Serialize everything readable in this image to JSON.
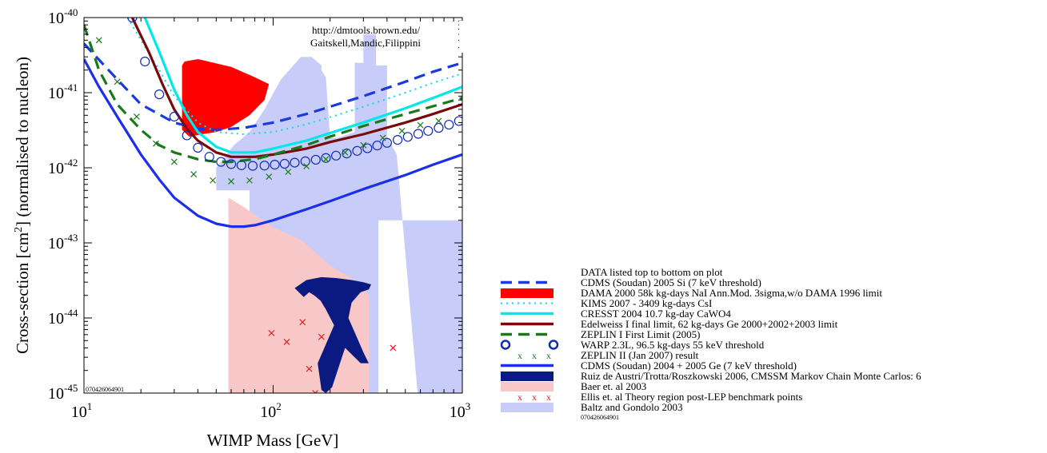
{
  "chart_data": {
    "type": "line",
    "xscale": "log",
    "yscale": "log",
    "xlim": [
      10,
      1000
    ],
    "ylim": [
      1e-45,
      1e-40
    ],
    "xlabel": "WIMP Mass [GeV]",
    "ylabel_pre": "Cross-section [cm",
    "ylabel_sup": "2",
    "ylabel_post": "] (normalised to nucleon)",
    "xticks": [
      {
        "base": "10",
        "exp": "1",
        "value": 10
      },
      {
        "base": "10",
        "exp": "2",
        "value": 100
      },
      {
        "base": "10",
        "exp": "3",
        "value": 1000
      }
    ],
    "yticks": [
      {
        "base": "10",
        "exp": "-40",
        "value": 1e-40
      },
      {
        "base": "10",
        "exp": "-41",
        "value": 1e-41
      },
      {
        "base": "10",
        "exp": "-42",
        "value": 1e-42
      },
      {
        "base": "10",
        "exp": "-43",
        "value": 1e-43
      },
      {
        "base": "10",
        "exp": "-44",
        "value": 1e-44
      },
      {
        "base": "10",
        "exp": "-45",
        "value": 1e-45
      }
    ],
    "annotations": {
      "url": "http://dmtools.brown.edu/",
      "authors": "Gaitskell,Mandic,Filippini",
      "plot_code": "070426064901"
    },
    "series": [
      {
        "name": "Baltz and Gondolo 2003",
        "kind": "region",
        "color": "#c8ccf8",
        "x": [
          50,
          50,
          75,
          75,
          360,
          360,
          1000,
          1000,
          800,
          580,
          450,
          400,
          400,
          350,
          350,
          300,
          300,
          270,
          270,
          220,
          200,
          190,
          190,
          180,
          180,
          160,
          140,
          110,
          90,
          75,
          62,
          50
        ],
        "y": [
          1e-45,
          5e-43,
          5e-43,
          1e-45,
          1e-45,
          2e-43,
          2e-43,
          1e-45,
          1e-45,
          1e-45,
          1.5e-42,
          2.6e-42,
          2.3e-41,
          2.3e-41,
          6e-41,
          6e-41,
          2.5e-41,
          2.5e-41,
          3e-42,
          2.5e-42,
          2.5e-42,
          1.6e-41,
          1.6e-41,
          2e-41,
          2.3e-41,
          3e-41,
          3e-41,
          1.5e-41,
          6e-42,
          3e-42,
          2e-42,
          1e-42
        ]
      },
      {
        "name": "Baer et. al 2003",
        "kind": "region",
        "color": "#f8c8c8",
        "x": [
          58,
          70,
          100,
          140,
          200,
          280,
          320,
          320,
          230,
          120,
          100,
          90,
          80,
          70,
          60,
          58
        ],
        "y": [
          4e-43,
          3e-43,
          1.6e-43,
          1.1e-43,
          5e-44,
          3e-44,
          2e-44,
          1e-45,
          1e-45,
          1e-45,
          1e-45,
          1e-45,
          1e-45,
          1e-45,
          1e-45,
          1e-45
        ]
      },
      {
        "name": "Ruiz de Austri/Trotta/Roszkowski 2006, CMSSM Markov Chain Monte Carlos: 6",
        "kind": "region",
        "color": "#0a1a80",
        "x": [
          130,
          150,
          180,
          215,
          260,
          300,
          330,
          320,
          290,
          260,
          250,
          300,
          320,
          290,
          240,
          205,
          190,
          180,
          172,
          210,
          190,
          178,
          165,
          155,
          145,
          130
        ],
        "y": [
          2.5e-44,
          3.2e-44,
          3.5e-44,
          3.4e-44,
          3.2e-44,
          3e-44,
          2.8e-44,
          2.4e-44,
          2.2e-44,
          1.6e-44,
          1e-44,
          3.5e-45,
          2.5e-45,
          2.5e-45,
          4e-45,
          1.2e-45,
          1e-45,
          1.1e-45,
          2.5e-45,
          8e-45,
          1.3e-44,
          1.7e-44,
          2e-44,
          2.2e-44,
          1.9e-44,
          2.5e-44
        ]
      },
      {
        "name": "DAMA 2000 58k kg-days NaI Ann.Mod. 3sigma,w/o DAMA 1996 limit",
        "kind": "region",
        "color": "#ff0000",
        "x": [
          33,
          34,
          40,
          60,
          80,
          95,
          90,
          75,
          60,
          50,
          42,
          36,
          33
        ],
        "y": [
          2.3e-41,
          2.6e-41,
          2.8e-41,
          2.2e-41,
          1.6e-41,
          1.3e-41,
          8e-42,
          5e-42,
          3.5e-42,
          3e-42,
          2.8e-42,
          2.6e-42,
          3.2e-42
        ]
      },
      {
        "name": "CDMS (Soudan) 2005 Si (7 keV threshold)",
        "kind": "line",
        "color": "#1a3ae0",
        "dash": "dash",
        "x": [
          10,
          15,
          20,
          30,
          40,
          50,
          70,
          100,
          150,
          200,
          300,
          500,
          700,
          1000
        ],
        "y": [
          4.5e-41,
          1.5e-41,
          7e-42,
          4e-42,
          3.3e-42,
          3.2e-42,
          3.4e-42,
          4e-42,
          5.2e-42,
          6.5e-42,
          9e-42,
          1.4e-41,
          1.9e-41,
          2.5e-41
        ]
      },
      {
        "name": "KIMS 2007 - 3409 kg-days CsI",
        "kind": "line",
        "color": "#00e0e8",
        "dash": "dot",
        "x": [
          17,
          20,
          25,
          30,
          40,
          50,
          70,
          100,
          150,
          200,
          300,
          500,
          700,
          1000
        ],
        "y": [
          1e-40,
          5e-41,
          2e-41,
          9e-42,
          4e-42,
          3e-42,
          2.8e-42,
          3e-42,
          3.8e-42,
          4.7e-42,
          6.5e-42,
          1e-41,
          1.35e-41,
          1.8e-41
        ]
      },
      {
        "name": "CRESST 2004 10.7 kg-day CaWO4",
        "kind": "line",
        "color": "#00e8e8",
        "dash": "solid",
        "x": [
          21,
          25,
          30,
          35,
          40,
          50,
          60,
          80,
          100,
          150,
          200,
          300,
          500,
          700,
          1000
        ],
        "y": [
          1e-40,
          3.5e-41,
          1.1e-41,
          5e-42,
          3e-42,
          1.9e-42,
          1.6e-42,
          1.6e-42,
          1.8e-42,
          2.3e-42,
          2.9e-42,
          4e-42,
          6.2e-42,
          8.5e-42,
          1.2e-41
        ]
      },
      {
        "name": "Edelweiss I final limit, 62 kg-days Ge 2000+2002+2003 limit",
        "kind": "line",
        "color": "#7a0a0a",
        "dash": "solid",
        "x": [
          18,
          22,
          26,
          30,
          35,
          40,
          50,
          60,
          80,
          100,
          150,
          200,
          300,
          500,
          700,
          1000
        ],
        "y": [
          1e-40,
          3.5e-41,
          1.3e-41,
          6e-42,
          3.3e-42,
          2.3e-42,
          1.6e-42,
          1.4e-42,
          1.4e-42,
          1.5e-42,
          1.8e-42,
          2.2e-42,
          2.8e-42,
          4e-42,
          5.2e-42,
          7e-42
        ]
      },
      {
        "name": "ZEPLIN I First Limit (2005)",
        "kind": "line",
        "color": "#1a7a1a",
        "dash": "dash",
        "x": [
          10,
          12,
          15,
          20,
          25,
          30,
          40,
          50,
          60,
          80,
          100,
          150,
          200,
          300,
          500,
          700,
          1000
        ],
        "y": [
          8e-41,
          2e-41,
          7e-42,
          3.2e-42,
          2e-42,
          1.6e-42,
          1.3e-42,
          1.2e-42,
          1.2e-42,
          1.3e-42,
          1.5e-42,
          2e-42,
          2.6e-42,
          3.6e-42,
          5.2e-42,
          6.6e-42,
          8.5e-42
        ]
      },
      {
        "name": "WARP 2.3L, 96.5 kg-days 55 keV threshold",
        "kind": "markers",
        "marker": "o",
        "color": "#102ab0",
        "x": [
          18,
          21,
          25,
          30,
          35,
          40,
          46,
          53,
          60,
          68,
          78,
          90,
          102,
          115,
          130,
          148,
          168,
          190,
          215,
          245,
          278,
          315,
          355,
          400,
          455,
          515,
          585,
          660,
          750,
          850,
          960
        ],
        "y": [
          1e-40,
          2.6e-41,
          9.5e-42,
          4.8e-42,
          2.7e-42,
          1.85e-42,
          1.4e-42,
          1.2e-42,
          1.12e-42,
          1.08e-42,
          1.06e-42,
          1.07e-42,
          1.1e-42,
          1.13e-42,
          1.17e-42,
          1.22e-42,
          1.28e-42,
          1.35e-42,
          1.45e-42,
          1.55e-42,
          1.68e-42,
          1.82e-42,
          1.98e-42,
          2.15e-42,
          2.35e-42,
          2.58e-42,
          2.83e-42,
          3.1e-42,
          3.4e-42,
          3.75e-42,
          4.2e-42
        ]
      },
      {
        "name": "ZEPLIN II (Jan 2007) result",
        "kind": "markers",
        "marker": "x",
        "color": "#1a7a1a",
        "x": [
          12,
          15,
          19,
          24,
          30,
          38,
          48,
          60,
          75,
          95,
          120,
          150,
          190,
          240,
          300,
          380,
          480,
          600,
          750
        ],
        "y": [
          5e-41,
          1.4e-41,
          4.8e-42,
          2.1e-42,
          1.2e-42,
          8.2e-43,
          6.8e-43,
          6.6e-43,
          6.8e-43,
          7.6e-43,
          8.8e-43,
          1.05e-42,
          1.3e-42,
          1.6e-42,
          2e-42,
          2.5e-42,
          3.1e-42,
          3.7e-42,
          4.2e-42
        ]
      },
      {
        "name": "CDMS (Soudan) 2004 + 2005 Ge (7 keV threshold)",
        "kind": "line",
        "color": "#1a30e8",
        "dash": "solid",
        "x": [
          10,
          12,
          15,
          20,
          25,
          30,
          40,
          50,
          60,
          70,
          80,
          100,
          150,
          200,
          300,
          500,
          700,
          1000
        ],
        "y": [
          2.8e-41,
          1.2e-41,
          4.8e-42,
          1.5e-42,
          7e-43,
          4e-43,
          2.3e-43,
          1.8e-43,
          1.65e-43,
          1.65e-43,
          1.72e-43,
          2e-43,
          2.8e-43,
          3.6e-43,
          5.2e-43,
          8e-43,
          1.1e-42,
          1.5e-42
        ]
      },
      {
        "name": "Ellis et. al Theory region post-LEP benchmark points",
        "kind": "markers",
        "marker": "x",
        "color": "#e02020",
        "x": [
          98,
          118,
          143,
          180,
          155,
          430,
          167
        ],
        "y": [
          6.3e-45,
          4.8e-45,
          8.8e-45,
          5.6e-45,
          2.1e-45,
          4e-45,
          1e-45
        ]
      }
    ]
  },
  "legend": {
    "title": "DATA listed top to bottom on plot",
    "code": "070426064901",
    "entries": [
      {
        "label": "CDMS (Soudan) 2005 Si (7 keV threshold)",
        "swatch": "dash",
        "color": "#1a3ae0"
      },
      {
        "label": "DAMA 2000 58k kg-days NaI Ann.Mod. 3sigma,w/o DAMA 1996 limit",
        "swatch": "fill",
        "color": "#ff0000"
      },
      {
        "label": "KIMS 2007 - 3409 kg-days CsI",
        "swatch": "dot",
        "color": "#00e0e8"
      },
      {
        "label": "CRESST 2004 10.7 kg-day CaWO4",
        "swatch": "line",
        "color": "#00e8e8"
      },
      {
        "label": "Edelweiss I final limit, 62 kg-days Ge 2000+2002+2003 limit",
        "swatch": "line",
        "color": "#7a0a0a"
      },
      {
        "label": "ZEPLIN I First Limit (2005)",
        "swatch": "dash",
        "color": "#1a7a1a"
      },
      {
        "label": "WARP 2.3L, 96.5 kg-days 55 keV threshold",
        "swatch": "circles",
        "color": "#102ab0"
      },
      {
        "label": "ZEPLIN II (Jan 2007) result",
        "swatch": "crosses",
        "color": "#1a7a1a"
      },
      {
        "label": "CDMS (Soudan) 2004 + 2005 Ge (7 keV threshold)",
        "swatch": "line",
        "color": "#1a30e8"
      },
      {
        "label": "Ruiz de Austri/Trotta/Roszkowski 2006, CMSSM Markov Chain Monte Carlos: 6",
        "swatch": "fill",
        "color": "#0a1a80"
      },
      {
        "label": "Baer et. al 2003",
        "swatch": "fill",
        "color": "#f8c8c8"
      },
      {
        "label": "Ellis et. al Theory region post-LEP benchmark points",
        "swatch": "crosses",
        "color": "#e02020"
      },
      {
        "label": "Baltz and Gondolo 2003",
        "swatch": "fill",
        "color": "#c8ccf8"
      }
    ]
  }
}
